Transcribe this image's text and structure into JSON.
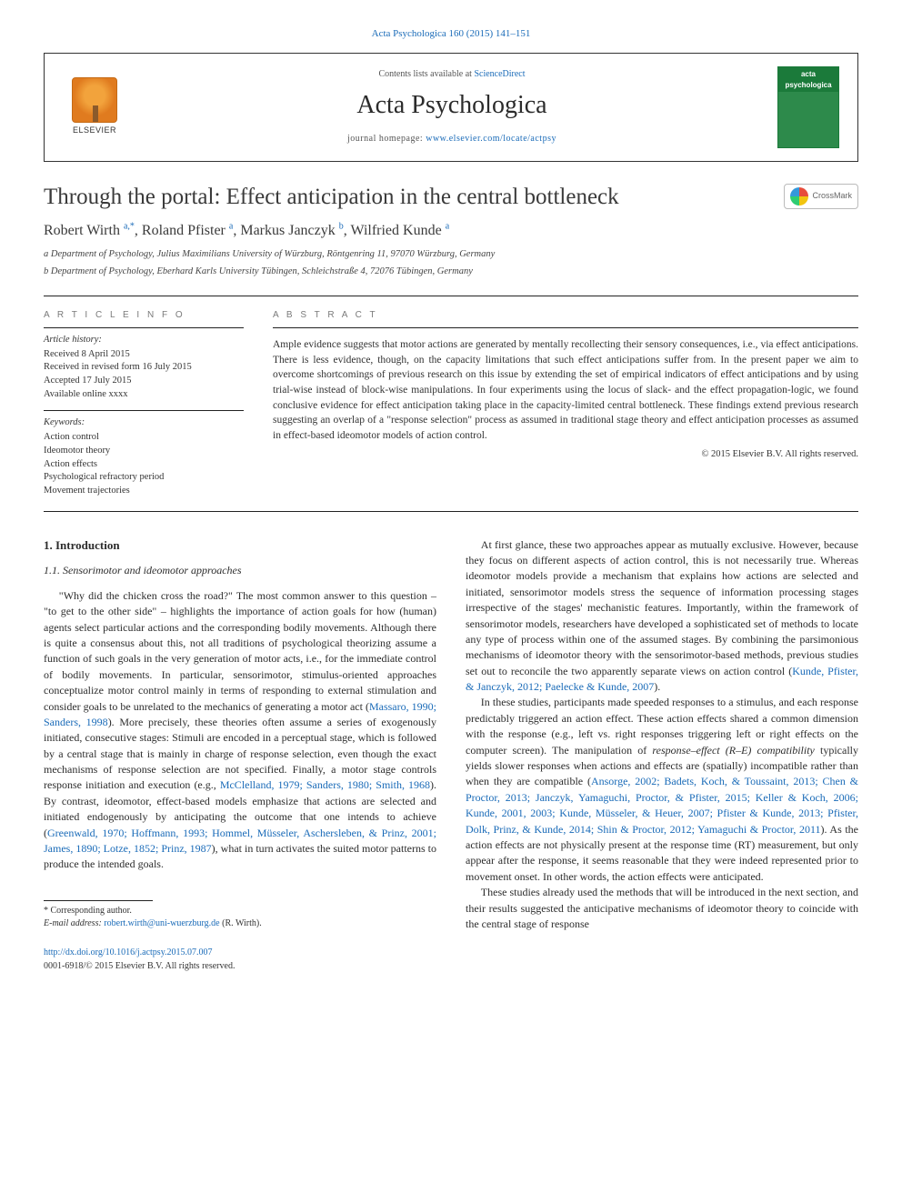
{
  "header": {
    "citation_link": "Acta Psychologica 160 (2015) 141–151",
    "contents_prefix": "Contents lists available at ",
    "contents_link": "ScienceDirect",
    "journal_name": "Acta Psychologica",
    "homepage_prefix": "journal homepage: ",
    "homepage_link": "www.elsevier.com/locate/actpsy",
    "elsevier_label": "ELSEVIER",
    "cover_head": "acta psychologica"
  },
  "crossmark_label": "CrossMark",
  "article": {
    "title": "Through the portal: Effect anticipation in the central bottleneck",
    "authors_html": "Robert Wirth <sup>a,*</sup>, Roland Pfister <sup>a</sup>, Markus Janczyk <sup>b</sup>, Wilfried Kunde <sup>a</sup>",
    "affiliations": [
      "a Department of Psychology, Julius Maximilians University of Würzburg, Röntgenring 11, 97070 Würzburg, Germany",
      "b Department of Psychology, Eberhard Karls University Tübingen, Schleichstraße 4, 72076 Tübingen, Germany"
    ]
  },
  "info": {
    "heading": "A R T I C L E   I N F O",
    "history_label": "Article history:",
    "history": [
      "Received 8 April 2015",
      "Received in revised form 16 July 2015",
      "Accepted 17 July 2015",
      "Available online xxxx"
    ],
    "keywords_label": "Keywords:",
    "keywords": [
      "Action control",
      "Ideomotor theory",
      "Action effects",
      "Psychological refractory period",
      "Movement trajectories"
    ]
  },
  "abstract": {
    "heading": "A B S T R A C T",
    "text": "Ample evidence suggests that motor actions are generated by mentally recollecting their sensory consequences, i.e., via effect anticipations. There is less evidence, though, on the capacity limitations that such effect anticipations suffer from. In the present paper we aim to overcome shortcomings of previous research on this issue by extending the set of empirical indicators of effect anticipations and by using trial-wise instead of block-wise manipulations. In four experiments using the locus of slack- and the effect propagation-logic, we found conclusive evidence for effect anticipation taking place in the capacity-limited central bottleneck. These findings extend previous research suggesting an overlap of a \"response selection\" process as assumed in traditional stage theory and effect anticipation processes as assumed in effect-based ideomotor models of action control.",
    "copyright": "© 2015 Elsevier B.V. All rights reserved."
  },
  "body": {
    "h_intro": "1. Introduction",
    "h_11": "1.1. Sensorimotor and ideomotor approaches",
    "left_p1a": "\"Why did the chicken cross the road?\" The most common answer to this question – \"to get to the other side\" – highlights the importance of action goals for how (human) agents select particular actions and the corresponding bodily movements. Although there is quite a consensus about this, not all traditions of psychological theorizing assume a function of such goals in the very generation of motor acts, i.e., for the immediate control of bodily movements. In particular, sensorimotor, stimulus-oriented approaches conceptualize motor control mainly in terms of responding to external stimulation and consider goals to be unrelated to the mechanics of generating a motor act (",
    "left_cite1": "Massaro, 1990; Sanders, 1998",
    "left_p1b": "). More precisely, these theories often assume a series of exogenously initiated, consecutive stages: Stimuli are encoded in a perceptual stage, which is followed by a central stage that is mainly in charge of response selection, even though the exact mechanisms of response selection are not specified. Finally, a motor stage controls response initiation and execution (e.g., ",
    "left_cite2": "McClelland, 1979; Sanders, 1980; Smith, 1968",
    "left_p1c": "). By contrast, ideomotor, effect-based models emphasize that actions are selected and initiated endogenously by anticipating the outcome that one intends to achieve (",
    "left_cite3": "Greenwald, 1970; Hoffmann, 1993; Hommel, Müsseler, Aschersleben, & Prinz, 2001; James, 1890; Lotze, 1852; Prinz, 1987",
    "left_p1d": "), what in turn activates the suited motor patterns to produce the intended goals.",
    "right_p1a": "At first glance, these two approaches appear as mutually exclusive. However, because they focus on different aspects of action control, this is not necessarily true. Whereas ideomotor models provide a mechanism that explains how actions are selected and initiated, sensorimotor models stress the sequence of information processing stages irrespective of the stages' mechanistic features. Importantly, within the framework of sensorimotor models, researchers have developed a sophisticated set of methods to locate any type of process within one of the assumed stages. By combining the parsimonious mechanisms of ideomotor theory with the sensorimotor-based methods, previous studies set out to reconcile the two apparently separate views on action control (",
    "right_cite1": "Kunde, Pfister, & Janczyk, 2012; Paelecke & Kunde, 2007",
    "right_p1b": ").",
    "right_p2a": "In these studies, participants made speeded responses to a stimulus, and each response predictably triggered an action effect. These action effects shared a common dimension with the response (e.g., left vs. right responses triggering left or right effects on the computer screen). The manipulation of ",
    "right_p2_emph": "response–effect (R–E) compatibility",
    "right_p2b": " typically yields slower responses when actions and effects are (spatially) incompatible rather than when they are compatible (",
    "right_cite2": "Ansorge, 2002; Badets, Koch, & Toussaint, 2013; Chen & Proctor, 2013; Janczyk, Yamaguchi, Proctor, & Pfister, 2015; Keller & Koch, 2006; Kunde, 2001, 2003; Kunde, Müsseler, & Heuer, 2007; Pfister & Kunde, 2013; Pfister, Dolk, Prinz, & Kunde, 2014; Shin & Proctor, 2012; Yamaguchi & Proctor, 2011",
    "right_p2c": "). As the action effects are not physically present at the response time (RT) measurement, but only appear after the response, it seems reasonable that they were indeed represented prior to movement onset. In other words, the action effects were anticipated.",
    "right_p3": "These studies already used the methods that will be introduced in the next section, and their results suggested the anticipative mechanisms of ideomotor theory to coincide with the central stage of response"
  },
  "footer": {
    "corr_label": "* Corresponding author.",
    "email_label": "E-mail address: ",
    "email": "robert.wirth@uni-wuerzburg.de",
    "email_suffix": " (R. Wirth).",
    "doi": "http://dx.doi.org/10.1016/j.actpsy.2015.07.007",
    "issn_line": "0001-6918/© 2015 Elsevier B.V. All rights reserved."
  },
  "colors": {
    "link": "#1a6bb8",
    "text": "#333333",
    "rule": "#222222"
  }
}
